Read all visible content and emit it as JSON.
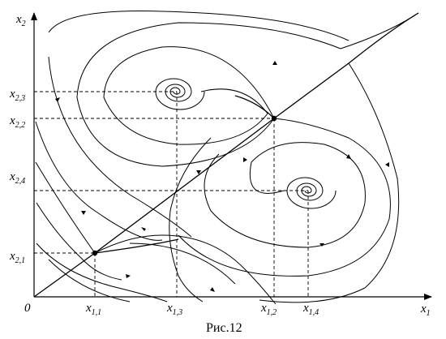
{
  "figure": {
    "caption": "Рис.12",
    "origin_label": "0",
    "x_axis": {
      "base": "x",
      "sub": "1"
    },
    "y_axis": {
      "base": "x",
      "sub": "2"
    },
    "x_ticks": [
      {
        "base": "x",
        "sub": "1,1"
      },
      {
        "base": "x",
        "sub": "1,3"
      },
      {
        "base": "x",
        "sub": "1,2"
      },
      {
        "base": "x",
        "sub": "1,4"
      }
    ],
    "y_ticks": [
      {
        "base": "x",
        "sub": "2,3"
      },
      {
        "base": "x",
        "sub": "2,2"
      },
      {
        "base": "x",
        "sub": "2,4"
      },
      {
        "base": "x",
        "sub": "2,1"
      }
    ],
    "equilibria": [
      {
        "name": "node-1",
        "x_label": "x1,1",
        "y_label": "x2,1"
      },
      {
        "name": "focus-upper",
        "x_label": "x1,3",
        "y_label": "x2,3"
      },
      {
        "name": "saddle",
        "x_label": "x1,2",
        "y_label": "x2,2"
      },
      {
        "name": "focus-lower",
        "x_label": "x1,4",
        "y_label": "x2,4"
      }
    ]
  }
}
